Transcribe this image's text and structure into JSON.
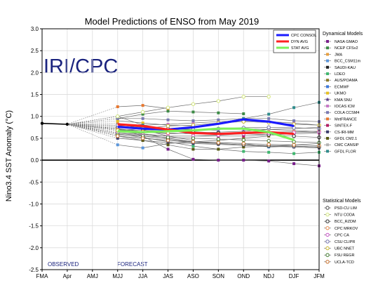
{
  "chart_data": {
    "type": "line",
    "title": "Model Predictions of ENSO from May 2019",
    "ylabel": "Nino3.4 SST Anomaly (°C)",
    "xlabel": "",
    "categories": [
      "FMA",
      "Apr",
      "AMJ",
      "MJJ",
      "JJA",
      "JAS",
      "ASO",
      "SON",
      "OND",
      "NDJ",
      "DJF",
      "JFM"
    ],
    "ylim": [
      -2.5,
      3.0
    ],
    "yticks": [
      -2.5,
      -2.0,
      -1.5,
      -1.0,
      -0.5,
      0.0,
      0.5,
      1.0,
      1.5,
      2.0,
      2.5,
      3.0
    ],
    "ytick_labels": [
      "-2.5",
      "-2.0",
      "-1.5",
      "-1.0",
      "-0.5",
      "0.0",
      "0.5",
      "1.0",
      "1.5",
      "2.0",
      "2.5",
      "3.0"
    ],
    "grid": true,
    "watermark": "IRI/CPC",
    "annotations": {
      "observed": "OBSERVED",
      "forecast": "FORECAST"
    },
    "observed": [
      0.84,
      0.82
    ],
    "consensus_series": [
      {
        "name": "CPC CONSOL",
        "color": "#1a1aff",
        "values": [
          0.76,
          0.72,
          0.7,
          0.75,
          0.83,
          0.93,
          0.88,
          0.78
        ]
      },
      {
        "name": "DYN AVG",
        "color": "#ff2020",
        "values": [
          0.82,
          0.78,
          0.7,
          0.62,
          0.6,
          0.62,
          0.64,
          0.6
        ]
      },
      {
        "name": "STAT AVG",
        "color": "#7cf05a",
        "values": [
          0.66,
          0.64,
          0.66,
          0.68,
          0.72,
          0.72,
          0.64,
          0.46
        ]
      }
    ],
    "dynamical_title": "Dynamical Models",
    "dynamical_models": [
      {
        "name": "NASA GMAO",
        "color": "#7a1f8c",
        "marker": "square",
        "values": [
          0.73,
          0.55,
          0.25,
          0.02,
          0.0,
          0.0,
          -0.02,
          -0.08,
          -0.13
        ]
      },
      {
        "name": "NCEP CFSv2",
        "color": "#3c8c46",
        "marker": "square",
        "values": [
          0.95,
          1.05,
          1.12,
          1.1,
          1.08,
          1.06,
          null,
          null,
          null
        ]
      },
      {
        "name": "JMA",
        "color": "#e8a040",
        "marker": "square",
        "values": [
          0.85,
          0.7,
          0.55,
          0.45,
          null,
          null,
          null,
          null,
          null
        ]
      },
      {
        "name": "BCC_CSM11m",
        "color": "#5a96dc",
        "marker": "square",
        "values": [
          0.35,
          0.28,
          0.38,
          0.42,
          0.4,
          0.38,
          0.3,
          0.32,
          0.3
        ]
      },
      {
        "name": "SAUDI-KAU",
        "color": "#222222",
        "marker": "square",
        "values": [
          0.55,
          0.5,
          0.45,
          0.4,
          0.38,
          0.35,
          0.33,
          0.32,
          0.3
        ]
      },
      {
        "name": "LDEO",
        "color": "#40b870",
        "marker": "square",
        "values": [
          0.6,
          0.52,
          0.42,
          0.32,
          0.25,
          0.2,
          0.18,
          0.15,
          0.18
        ]
      },
      {
        "name": "AUS/POAMA",
        "color": "#8c7a28",
        "marker": "square",
        "values": [
          0.7,
          0.6,
          0.5,
          0.42,
          0.45,
          0.5,
          0.55,
          null,
          null
        ]
      },
      {
        "name": "ECMWF",
        "color": "#3c78dc",
        "marker": "square",
        "values": [
          0.8,
          0.75,
          0.72,
          0.7,
          0.68,
          null,
          null,
          null,
          null
        ]
      },
      {
        "name": "UKMO",
        "color": "#e8c020",
        "marker": "square",
        "values": [
          0.9,
          0.85,
          0.8,
          0.78,
          null,
          null,
          null,
          null,
          null
        ]
      },
      {
        "name": "KMA SNU",
        "color": "#5a3c8c",
        "marker": "star",
        "values": [
          0.72,
          0.65,
          0.6,
          0.62,
          0.64,
          0.66,
          0.7,
          0.72,
          0.75
        ]
      },
      {
        "name": "IOCAS ICM",
        "color": "#c878c8",
        "marker": "square",
        "values": [
          0.78,
          0.8,
          0.82,
          0.85,
          0.88,
          0.9,
          0.88,
          0.85,
          0.8
        ]
      },
      {
        "name": "COLA CCSM4",
        "color": "#7a7ab4",
        "marker": "square",
        "values": [
          0.95,
          0.95,
          0.92,
          0.9,
          0.92,
          0.95,
          0.95,
          0.9,
          0.88
        ]
      },
      {
        "name": "MetFRANCE",
        "color": "#e87830",
        "marker": "square",
        "values": [
          1.22,
          1.25,
          1.18,
          null,
          null,
          null,
          null,
          null,
          null
        ]
      },
      {
        "name": "SINTEX-F",
        "color": "#b41e64",
        "marker": "square",
        "values": [
          0.65,
          0.6,
          0.55,
          0.55,
          0.55,
          0.55,
          0.58,
          0.6,
          0.62
        ]
      },
      {
        "name": "CS-IRI-MM",
        "color": "#3c3c6e",
        "marker": "square",
        "values": [
          0.5,
          0.45,
          0.4,
          0.38,
          0.36,
          0.34,
          0.32,
          0.3,
          0.28
        ]
      },
      {
        "name": "GFDL CM2.1",
        "color": "#5a5a14",
        "marker": "square",
        "values": [
          0.55,
          0.45,
          0.35,
          0.25,
          0.25,
          0.3,
          0.32,
          0.35,
          0.38
        ]
      },
      {
        "name": "CMC CANSIP",
        "color": "#b4b4b4",
        "marker": "square",
        "values": [
          0.7,
          0.68,
          0.66,
          0.68,
          0.7,
          0.72,
          0.7,
          0.68,
          0.65
        ]
      },
      {
        "name": "GFDL FLOR",
        "color": "#2e8c8c",
        "marker": "square",
        "values": [
          1.0,
          0.8,
          0.7,
          0.75,
          0.85,
          0.95,
          1.05,
          1.2,
          1.32
        ]
      }
    ],
    "statistical_title": "Statistical Models",
    "statistical_models": [
      {
        "name": "PSD-CU LIM",
        "color": "#404040",
        "values": [
          0.62,
          0.55,
          0.48,
          0.42,
          0.38,
          0.35,
          0.33,
          0.32,
          0.3
        ]
      },
      {
        "name": "NTU CODA",
        "color": "#d2e678",
        "values": [
          1.0,
          1.1,
          1.2,
          1.28,
          1.35,
          1.45,
          1.45,
          null,
          null
        ]
      },
      {
        "name": "BCC_RZDM",
        "color": "#282828",
        "values": [
          0.75,
          0.7,
          0.68,
          0.65,
          0.62,
          0.6,
          0.58,
          0.55,
          0.52
        ]
      },
      {
        "name": "CPC MRKOV",
        "color": "#e88c50",
        "values": [
          0.7,
          0.65,
          0.62,
          0.6,
          0.6,
          0.62,
          0.64,
          0.65,
          0.66
        ]
      },
      {
        "name": "CPC CA",
        "color": "#c850c8",
        "values": [
          0.62,
          0.58,
          0.55,
          0.55,
          0.57,
          0.6,
          0.62,
          0.63,
          0.64
        ]
      },
      {
        "name": "CSU CLIPR",
        "color": "#6e6eaa",
        "values": [
          0.8,
          0.75,
          0.72,
          0.7,
          0.72,
          0.74,
          0.75,
          0.74,
          0.72
        ]
      },
      {
        "name": "UBC NNET",
        "color": "#c8b428",
        "values": [
          0.68,
          0.72,
          0.78,
          0.8,
          0.85,
          0.88,
          0.86,
          0.82,
          0.8
        ]
      },
      {
        "name": "FSU REGR",
        "color": "#3c7828",
        "values": [
          0.58,
          0.55,
          0.52,
          0.5,
          0.48,
          0.46,
          0.44,
          0.42,
          0.4
        ]
      },
      {
        "name": "UCLA-TCD",
        "color": "#c86e28",
        "values": [
          0.55,
          0.5,
          0.45,
          0.42,
          0.4,
          0.38,
          0.36,
          0.35,
          0.33
        ]
      }
    ]
  }
}
